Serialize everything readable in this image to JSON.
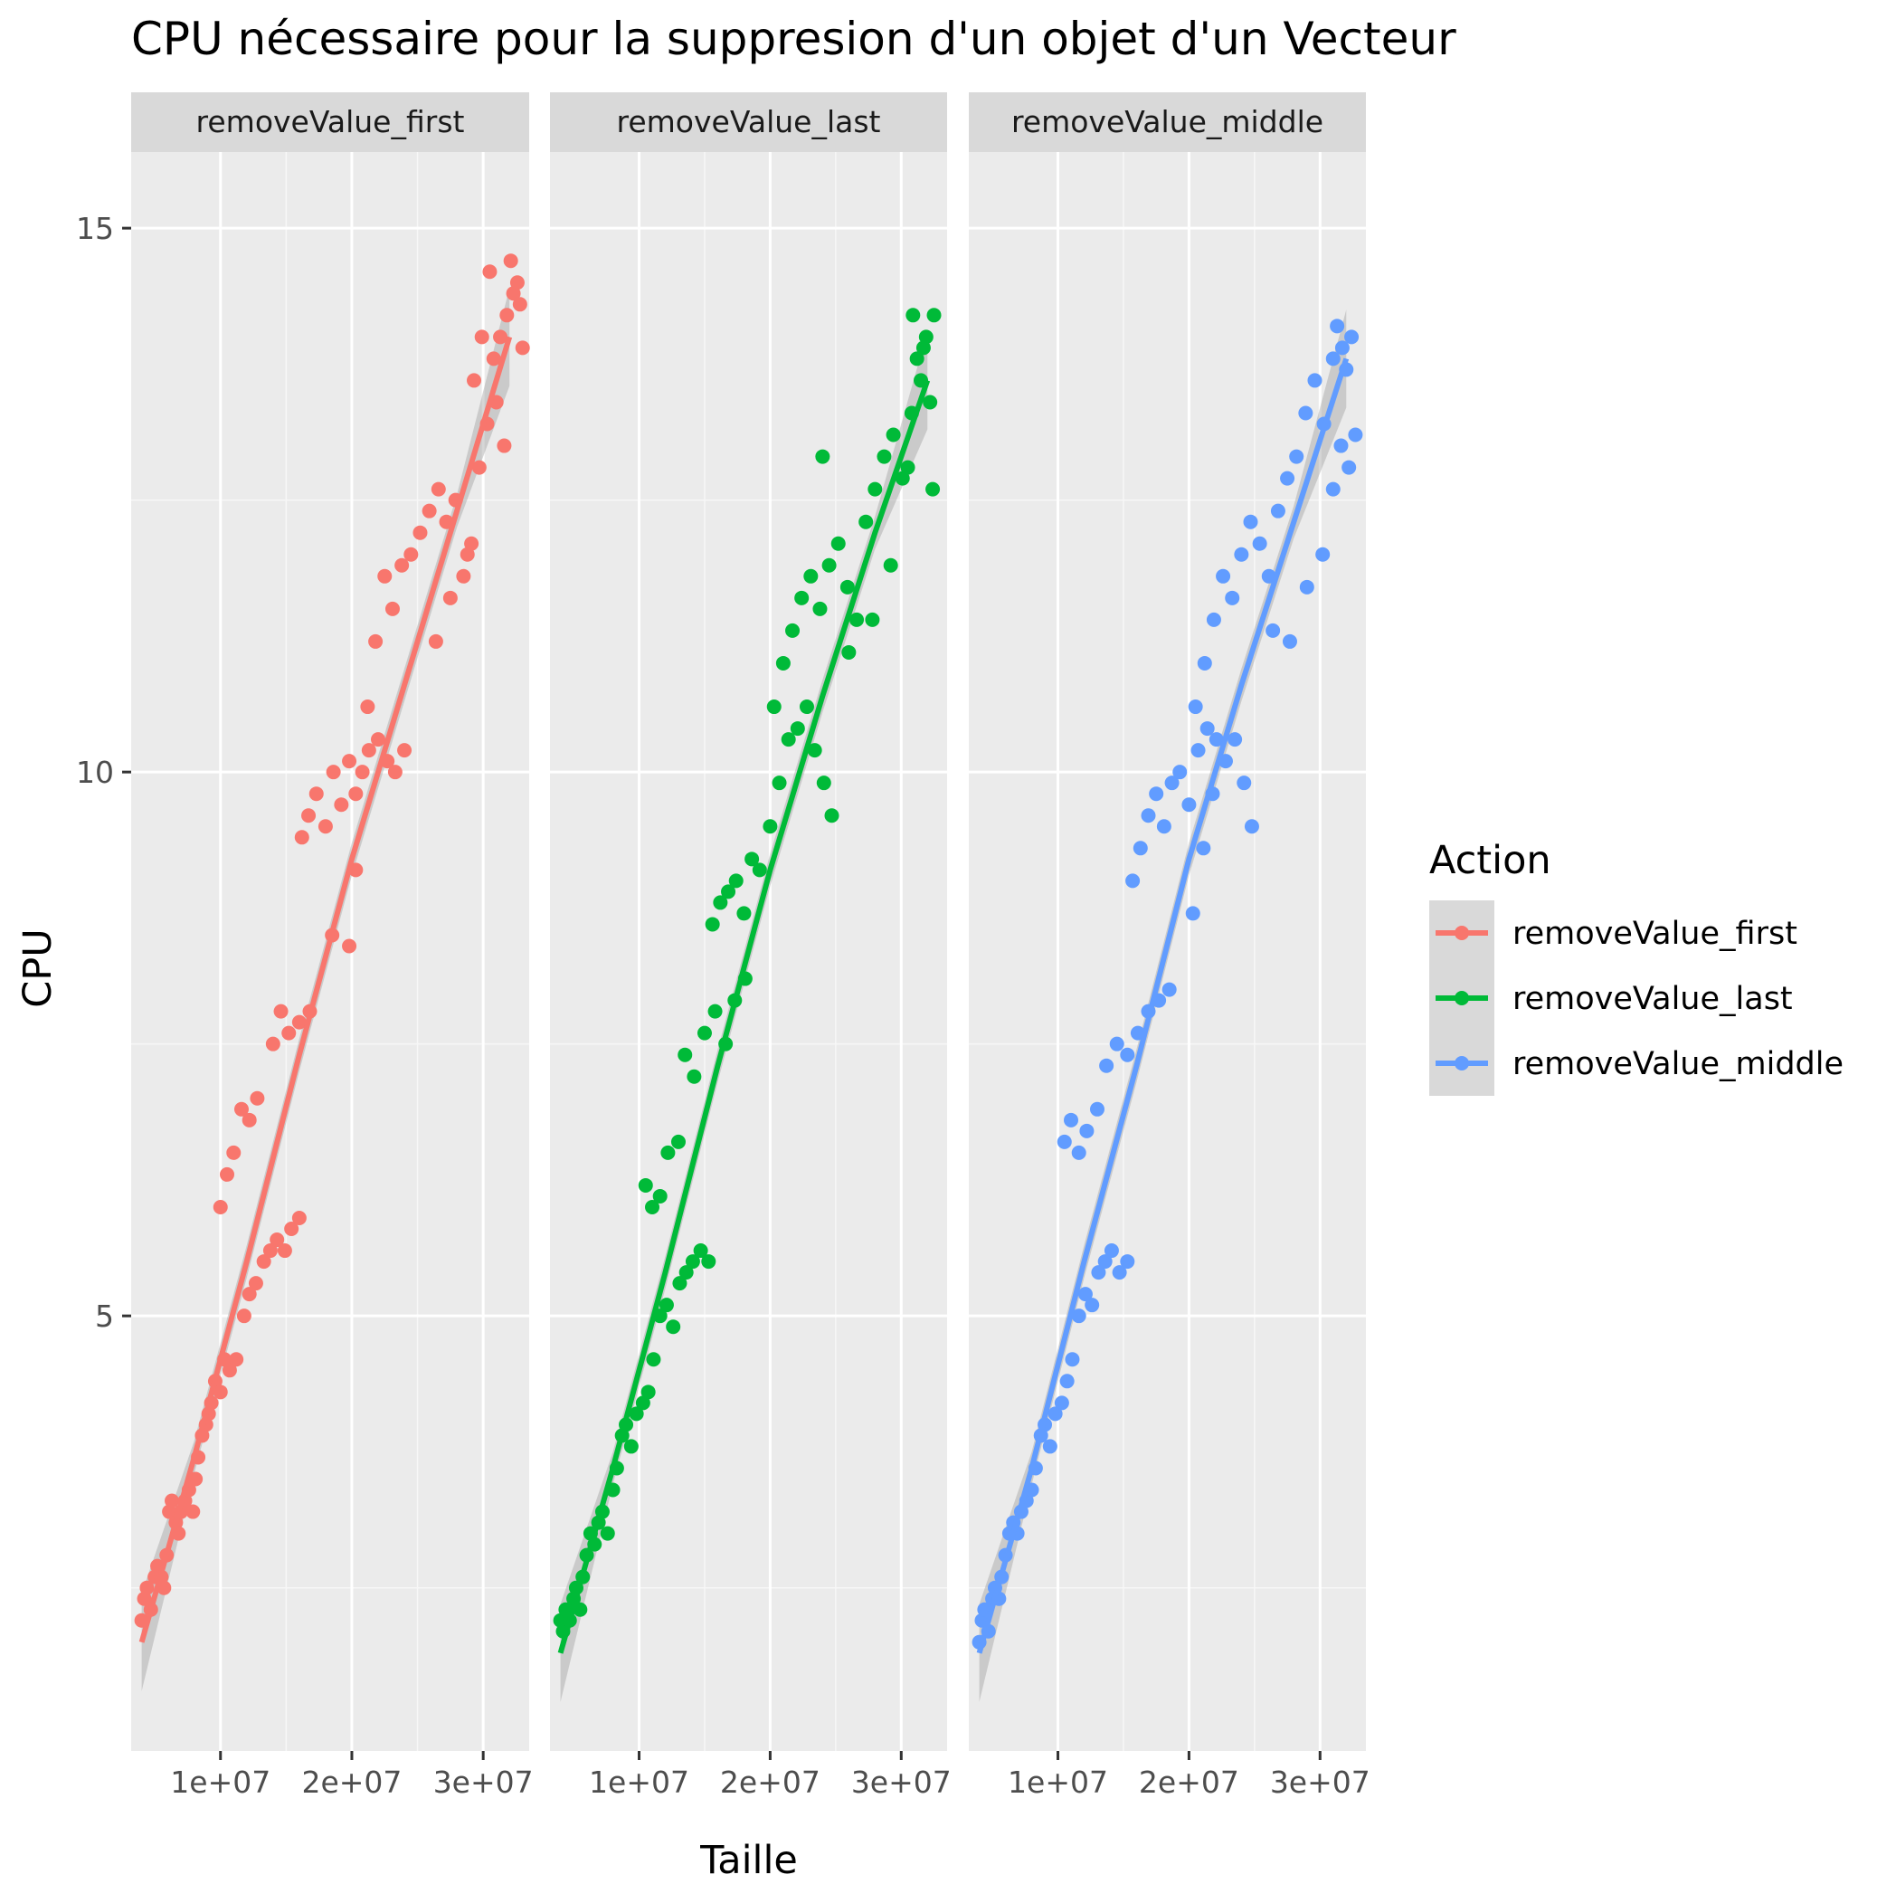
{
  "chart_data": {
    "type": "scatter",
    "title": "CPU nécessaire pour la suppresion d'un objet d'un Vecteur",
    "xlabel": "Taille",
    "ylabel": "CPU",
    "xlim": [
      3200000,
      33500000
    ],
    "ylim": [
      1.0,
      15.7
    ],
    "x_ticks": [
      10000000,
      20000000,
      30000000
    ],
    "x_tick_labels": [
      "1e+07",
      "2e+07",
      "3e+07"
    ],
    "y_ticks": [
      5,
      10,
      15
    ],
    "y_tick_labels": [
      "5",
      "10",
      "15"
    ],
    "y_minor_ticks": [
      2.5,
      7.5,
      12.5
    ],
    "grid": true,
    "smooth": "loess with confidence band",
    "legend": {
      "title": "Action",
      "position": "right",
      "entries": [
        "removeValue_first",
        "removeValue_last",
        "removeValue_middle"
      ]
    },
    "facets": [
      {
        "name": "removeValue_first",
        "color": "#F8766D",
        "points": [
          [
            4000000,
            2.2
          ],
          [
            4200000,
            2.4
          ],
          [
            4400000,
            2.5
          ],
          [
            4700000,
            2.3
          ],
          [
            5000000,
            2.6
          ],
          [
            5200000,
            2.7
          ],
          [
            5500000,
            2.6
          ],
          [
            5700000,
            2.5
          ],
          [
            5900000,
            2.8
          ],
          [
            6100000,
            3.2
          ],
          [
            6300000,
            3.3
          ],
          [
            6600000,
            3.1
          ],
          [
            6800000,
            3.0
          ],
          [
            7000000,
            3.2
          ],
          [
            7300000,
            3.3
          ],
          [
            7600000,
            3.4
          ],
          [
            7900000,
            3.2
          ],
          [
            8100000,
            3.5
          ],
          [
            8300000,
            3.7
          ],
          [
            8600000,
            3.9
          ],
          [
            8900000,
            4.0
          ],
          [
            9100000,
            4.1
          ],
          [
            9300000,
            4.2
          ],
          [
            9600000,
            4.4
          ],
          [
            10000000,
            4.3
          ],
          [
            10300000,
            4.6
          ],
          [
            10700000,
            4.5
          ],
          [
            11200000,
            4.6
          ],
          [
            11800000,
            5.0
          ],
          [
            12200000,
            5.2
          ],
          [
            12700000,
            5.3
          ],
          [
            13300000,
            5.5
          ],
          [
            13800000,
            5.6
          ],
          [
            14300000,
            5.7
          ],
          [
            14900000,
            5.6
          ],
          [
            15400000,
            5.8
          ],
          [
            16000000,
            5.9
          ],
          [
            10000000,
            6.0
          ],
          [
            10500000,
            6.3
          ],
          [
            11000000,
            6.5
          ],
          [
            11600000,
            6.9
          ],
          [
            12200000,
            6.8
          ],
          [
            12800000,
            7.0
          ],
          [
            14000000,
            7.5
          ],
          [
            14600000,
            7.8
          ],
          [
            15200000,
            7.6
          ],
          [
            16000000,
            7.7
          ],
          [
            16800000,
            7.8
          ],
          [
            16200000,
            9.4
          ],
          [
            16700000,
            9.6
          ],
          [
            17300000,
            9.8
          ],
          [
            18000000,
            9.5
          ],
          [
            18600000,
            10.0
          ],
          [
            19200000,
            9.7
          ],
          [
            19800000,
            10.1
          ],
          [
            20300000,
            9.8
          ],
          [
            20800000,
            10.0
          ],
          [
            21300000,
            10.2
          ],
          [
            22000000,
            10.3
          ],
          [
            22700000,
            10.1
          ],
          [
            23300000,
            10.0
          ],
          [
            24000000,
            10.2
          ],
          [
            18500000,
            8.5
          ],
          [
            19800000,
            8.4
          ],
          [
            20300000,
            9.1
          ],
          [
            21200000,
            10.6
          ],
          [
            21800000,
            11.2
          ],
          [
            22500000,
            11.8
          ],
          [
            23100000,
            11.5
          ],
          [
            23800000,
            11.9
          ],
          [
            24500000,
            12.0
          ],
          [
            25200000,
            12.2
          ],
          [
            25900000,
            12.4
          ],
          [
            26600000,
            12.6
          ],
          [
            27200000,
            12.3
          ],
          [
            27900000,
            12.5
          ],
          [
            28500000,
            11.8
          ],
          [
            29100000,
            12.1
          ],
          [
            29700000,
            12.8
          ],
          [
            26400000,
            11.2
          ],
          [
            27500000,
            11.6
          ],
          [
            28800000,
            12.0
          ],
          [
            30300000,
            13.2
          ],
          [
            30800000,
            13.8
          ],
          [
            31300000,
            14.0
          ],
          [
            31800000,
            14.2
          ],
          [
            32300000,
            14.4
          ],
          [
            32800000,
            14.3
          ],
          [
            29300000,
            13.6
          ],
          [
            29900000,
            14.0
          ],
          [
            30500000,
            14.6
          ],
          [
            31000000,
            13.4
          ],
          [
            31600000,
            13.0
          ],
          [
            32100000,
            14.7
          ],
          [
            32600000,
            14.5
          ],
          [
            33000000,
            13.9
          ]
        ],
        "fit": [
          [
            4000000,
            2.0
          ],
          [
            8000000,
            3.7
          ],
          [
            12000000,
            5.5
          ],
          [
            16000000,
            7.4
          ],
          [
            20000000,
            9.2
          ],
          [
            24000000,
            10.8
          ],
          [
            28000000,
            12.4
          ],
          [
            32000000,
            14.0
          ]
        ]
      },
      {
        "name": "removeValue_last",
        "color": "#00BA38",
        "points": [
          [
            4000000,
            2.2
          ],
          [
            4200000,
            2.1
          ],
          [
            4400000,
            2.3
          ],
          [
            4700000,
            2.2
          ],
          [
            5000000,
            2.4
          ],
          [
            5200000,
            2.5
          ],
          [
            5500000,
            2.3
          ],
          [
            5700000,
            2.6
          ],
          [
            6000000,
            2.8
          ],
          [
            6300000,
            3.0
          ],
          [
            6600000,
            2.9
          ],
          [
            6900000,
            3.1
          ],
          [
            7200000,
            3.2
          ],
          [
            7600000,
            3.0
          ],
          [
            8000000,
            3.4
          ],
          [
            8300000,
            3.6
          ],
          [
            8700000,
            3.9
          ],
          [
            9000000,
            4.0
          ],
          [
            9400000,
            3.8
          ],
          [
            9800000,
            4.1
          ],
          [
            10300000,
            4.2
          ],
          [
            10700000,
            4.3
          ],
          [
            11100000,
            4.6
          ],
          [
            11600000,
            5.0
          ],
          [
            12100000,
            5.1
          ],
          [
            12600000,
            4.9
          ],
          [
            13100000,
            5.3
          ],
          [
            13600000,
            5.4
          ],
          [
            14100000,
            5.5
          ],
          [
            14700000,
            5.6
          ],
          [
            15300000,
            5.5
          ],
          [
            10500000,
            6.2
          ],
          [
            11000000,
            6.0
          ],
          [
            11600000,
            6.1
          ],
          [
            12200000,
            6.5
          ],
          [
            13000000,
            6.6
          ],
          [
            13500000,
            7.4
          ],
          [
            14200000,
            7.2
          ],
          [
            15000000,
            7.6
          ],
          [
            15800000,
            7.8
          ],
          [
            16600000,
            7.5
          ],
          [
            17300000,
            7.9
          ],
          [
            18100000,
            8.1
          ],
          [
            15600000,
            8.6
          ],
          [
            16200000,
            8.8
          ],
          [
            16800000,
            8.9
          ],
          [
            17400000,
            9.0
          ],
          [
            18000000,
            8.7
          ],
          [
            18600000,
            9.2
          ],
          [
            19200000,
            9.1
          ],
          [
            20000000,
            9.5
          ],
          [
            20700000,
            9.9
          ],
          [
            21400000,
            10.3
          ],
          [
            22100000,
            10.4
          ],
          [
            22800000,
            10.6
          ],
          [
            23400000,
            10.2
          ],
          [
            24100000,
            9.9
          ],
          [
            24700000,
            9.6
          ],
          [
            20300000,
            10.6
          ],
          [
            21000000,
            11.0
          ],
          [
            21700000,
            11.3
          ],
          [
            22400000,
            11.6
          ],
          [
            23100000,
            11.8
          ],
          [
            23800000,
            11.5
          ],
          [
            24500000,
            11.9
          ],
          [
            25200000,
            12.1
          ],
          [
            25900000,
            11.7
          ],
          [
            26600000,
            11.4
          ],
          [
            27300000,
            12.3
          ],
          [
            28000000,
            12.6
          ],
          [
            28700000,
            12.9
          ],
          [
            29400000,
            13.1
          ],
          [
            30100000,
            12.7
          ],
          [
            30800000,
            13.3
          ],
          [
            31500000,
            13.6
          ],
          [
            32200000,
            13.4
          ],
          [
            24000000,
            12.9
          ],
          [
            26000000,
            11.1
          ],
          [
            27800000,
            11.4
          ],
          [
            29200000,
            11.9
          ],
          [
            30500000,
            12.8
          ],
          [
            31200000,
            13.8
          ],
          [
            31900000,
            14.0
          ],
          [
            32400000,
            12.6
          ],
          [
            30900000,
            14.2
          ],
          [
            31700000,
            13.9
          ],
          [
            32500000,
            14.2
          ]
        ],
        "fit": [
          [
            4000000,
            1.9
          ],
          [
            8000000,
            3.6
          ],
          [
            12000000,
            5.4
          ],
          [
            16000000,
            7.3
          ],
          [
            20000000,
            9.1
          ],
          [
            24000000,
            10.7
          ],
          [
            28000000,
            12.2
          ],
          [
            32000000,
            13.6
          ]
        ]
      },
      {
        "name": "removeValue_middle",
        "color": "#619CFF",
        "points": [
          [
            4000000,
            2.0
          ],
          [
            4200000,
            2.2
          ],
          [
            4400000,
            2.3
          ],
          [
            4700000,
            2.1
          ],
          [
            5000000,
            2.4
          ],
          [
            5200000,
            2.5
          ],
          [
            5500000,
            2.4
          ],
          [
            5700000,
            2.6
          ],
          [
            6000000,
            2.8
          ],
          [
            6300000,
            3.0
          ],
          [
            6600000,
            3.1
          ],
          [
            6900000,
            3.0
          ],
          [
            7200000,
            3.2
          ],
          [
            7600000,
            3.3
          ],
          [
            8000000,
            3.4
          ],
          [
            8300000,
            3.6
          ],
          [
            8700000,
            3.9
          ],
          [
            9000000,
            4.0
          ],
          [
            9400000,
            3.8
          ],
          [
            9800000,
            4.1
          ],
          [
            10300000,
            4.2
          ],
          [
            10700000,
            4.4
          ],
          [
            11100000,
            4.6
          ],
          [
            11600000,
            5.0
          ],
          [
            12100000,
            5.2
          ],
          [
            12600000,
            5.1
          ],
          [
            13100000,
            5.4
          ],
          [
            13600000,
            5.5
          ],
          [
            14100000,
            5.6
          ],
          [
            14700000,
            5.4
          ],
          [
            15300000,
            5.5
          ],
          [
            10500000,
            6.6
          ],
          [
            11000000,
            6.8
          ],
          [
            11600000,
            6.5
          ],
          [
            12200000,
            6.7
          ],
          [
            13000000,
            6.9
          ],
          [
            13700000,
            7.3
          ],
          [
            14500000,
            7.5
          ],
          [
            15300000,
            7.4
          ],
          [
            16100000,
            7.6
          ],
          [
            16900000,
            7.8
          ],
          [
            17700000,
            7.9
          ],
          [
            18500000,
            8.0
          ],
          [
            15700000,
            9.0
          ],
          [
            16300000,
            9.3
          ],
          [
            16900000,
            9.6
          ],
          [
            17500000,
            9.8
          ],
          [
            18100000,
            9.5
          ],
          [
            18700000,
            9.9
          ],
          [
            19300000,
            10.0
          ],
          [
            20000000,
            9.7
          ],
          [
            20700000,
            10.2
          ],
          [
            21400000,
            10.4
          ],
          [
            22100000,
            10.3
          ],
          [
            22800000,
            10.1
          ],
          [
            23500000,
            10.3
          ],
          [
            24200000,
            9.9
          ],
          [
            24800000,
            9.5
          ],
          [
            20300000,
            8.7
          ],
          [
            21100000,
            9.3
          ],
          [
            21800000,
            9.8
          ],
          [
            20500000,
            10.6
          ],
          [
            21200000,
            11.0
          ],
          [
            21900000,
            11.4
          ],
          [
            22600000,
            11.8
          ],
          [
            23300000,
            11.6
          ],
          [
            24000000,
            12.0
          ],
          [
            24700000,
            12.3
          ],
          [
            25400000,
            12.1
          ],
          [
            26100000,
            11.8
          ],
          [
            26800000,
            12.4
          ],
          [
            27500000,
            12.7
          ],
          [
            28200000,
            12.9
          ],
          [
            28900000,
            13.3
          ],
          [
            29600000,
            13.6
          ],
          [
            30300000,
            13.2
          ],
          [
            31000000,
            13.8
          ],
          [
            31700000,
            13.9
          ],
          [
            32400000,
            14.0
          ],
          [
            26400000,
            11.3
          ],
          [
            27700000,
            11.2
          ],
          [
            29000000,
            11.7
          ],
          [
            30200000,
            12.0
          ],
          [
            31000000,
            12.6
          ],
          [
            31600000,
            13.0
          ],
          [
            32200000,
            12.8
          ],
          [
            32700000,
            13.1
          ],
          [
            31300000,
            14.1
          ],
          [
            32000000,
            13.7
          ]
        ],
        "fit": [
          [
            4000000,
            1.9
          ],
          [
            8000000,
            3.6
          ],
          [
            12000000,
            5.5
          ],
          [
            16000000,
            7.3
          ],
          [
            20000000,
            9.2
          ],
          [
            24000000,
            10.8
          ],
          [
            28000000,
            12.3
          ],
          [
            32000000,
            13.8
          ]
        ]
      }
    ]
  }
}
